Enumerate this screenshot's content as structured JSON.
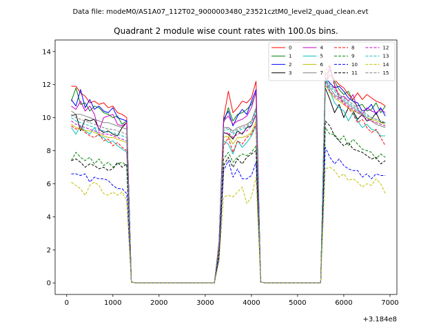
{
  "header": {
    "data_file": "Data file: modeM0/AS1A07_112T02_9000003480_23521cztM0_level2_quad_clean.evt"
  },
  "chart_data": {
    "type": "line",
    "title": "Quadrant 2 module wise count rates with 100.0s bins.",
    "xlabel": "",
    "ylabel": "",
    "x_offset_label": "+3.184e8",
    "xlim": [
      -250,
      7150
    ],
    "ylim": [
      -0.7,
      14.7
    ],
    "x_ticks": [
      0,
      1000,
      2000,
      3000,
      4000,
      5000,
      6000,
      7000
    ],
    "y_ticks": [
      0,
      2,
      4,
      6,
      8,
      10,
      12,
      14
    ],
    "grid": false,
    "legend_placement": "top-right",
    "x": [
      100,
      200,
      300,
      400,
      500,
      600,
      700,
      800,
      900,
      1000,
      1100,
      1200,
      1300,
      1400,
      1500,
      1600,
      1700,
      1800,
      1900,
      2000,
      2100,
      2200,
      2300,
      2400,
      2500,
      2600,
      2700,
      2800,
      2900,
      3000,
      3100,
      3200,
      3300,
      3400,
      3500,
      3600,
      3700,
      3800,
      3900,
      4000,
      4100,
      4200,
      4300,
      4400,
      4500,
      4600,
      4700,
      4800,
      4900,
      5000,
      5100,
      5200,
      5300,
      5400,
      5500,
      5600,
      5700,
      5800,
      5900,
      6000,
      6100,
      6200,
      6300,
      6400,
      6500,
      6600,
      6700,
      6800,
      6900
    ],
    "series": [
      {
        "name": "0",
        "color": "#ff0000",
        "dash": "solid",
        "values": [
          11.9,
          11.9,
          11.5,
          11.3,
          10.9,
          11.0,
          10.8,
          10.9,
          10.6,
          10.7,
          10.3,
          10.2,
          10.0,
          0.05,
          0,
          0,
          0,
          0,
          0,
          0,
          0,
          0,
          0,
          0,
          0,
          0,
          0,
          0,
          0,
          0,
          0,
          0,
          2.5,
          10.0,
          11.6,
          10.3,
          10.6,
          11.0,
          10.9,
          11.2,
          12.2,
          0.05,
          0,
          0,
          0,
          0,
          0,
          0,
          0,
          0,
          0,
          0,
          0,
          0,
          0,
          12.1,
          12.6,
          12.3,
          12.0,
          11.8,
          11.4,
          11.1,
          11.5,
          11.1,
          11.4,
          11.2,
          11.0,
          10.9,
          10.7
        ]
      },
      {
        "name": "1",
        "color": "#008000",
        "dash": "solid",
        "values": [
          11.0,
          11.8,
          10.8,
          10.9,
          10.4,
          10.7,
          10.6,
          10.3,
          10.2,
          10.0,
          10.1,
          9.6,
          9.8,
          0.05,
          0,
          0,
          0,
          0,
          0,
          0,
          0,
          0,
          0,
          0,
          0,
          0,
          0,
          0,
          0,
          0,
          0,
          0,
          2.3,
          9.7,
          10.6,
          9.8,
          10.2,
          10.3,
          10.5,
          10.8,
          11.5,
          0.05,
          0,
          0,
          0,
          0,
          0,
          0,
          0,
          0,
          0,
          0,
          0,
          0,
          0,
          12.6,
          12.9,
          12.2,
          11.7,
          11.4,
          11.6,
          11.0,
          10.7,
          10.8,
          10.4,
          10.5,
          10.9,
          10.3,
          10.7
        ]
      },
      {
        "name": "2",
        "color": "#0000ff",
        "dash": "solid",
        "values": [
          11.1,
          10.7,
          11.7,
          10.6,
          11.1,
          10.5,
          10.7,
          10.4,
          10.3,
          10.6,
          10.0,
          9.9,
          9.8,
          0.05,
          0,
          0,
          0,
          0,
          0,
          0,
          0,
          0,
          0,
          0,
          0,
          0,
          0,
          0,
          0,
          0,
          0,
          0,
          2.4,
          9.9,
          10.4,
          9.5,
          10.1,
          10.5,
          10.2,
          11.0,
          11.7,
          0.05,
          0,
          0,
          0,
          0,
          0,
          0,
          0,
          0,
          0,
          0,
          0,
          0,
          0,
          12.4,
          12.1,
          11.8,
          11.9,
          11.6,
          11.2,
          11.0,
          10.9,
          10.4,
          10.5,
          10.8,
          10.2,
          10.6,
          10.1
        ]
      },
      {
        "name": "3",
        "color": "#000000",
        "dash": "solid",
        "values": [
          10.1,
          10.2,
          9.2,
          9.9,
          9.8,
          9.9,
          9.3,
          9.1,
          9.2,
          9.0,
          8.9,
          9.4,
          9.7,
          0.05,
          0,
          0,
          0,
          0,
          0,
          0,
          0,
          0,
          0,
          0,
          0,
          0,
          0,
          0,
          0,
          0,
          0,
          0,
          2.2,
          9.1,
          9.0,
          8.7,
          9.2,
          9.0,
          9.4,
          9.5,
          10.2,
          0.05,
          0,
          0,
          0,
          0,
          0,
          0,
          0,
          0,
          0,
          0,
          0,
          0,
          0,
          11.8,
          11.1,
          10.3,
          10.8,
          10.0,
          10.6,
          10.4,
          9.9,
          10.2,
          9.8,
          9.9,
          10.3,
          9.7,
          9.7
        ]
      },
      {
        "name": "4",
        "color": "#bf00bf",
        "dash": "solid",
        "values": [
          10.7,
          10.5,
          11.0,
          10.4,
          10.7,
          10.2,
          9.2,
          10.0,
          10.1,
          10.2,
          9.6,
          9.5,
          9.7,
          0.05,
          0,
          0,
          0,
          0,
          0,
          0,
          0,
          0,
          0,
          0,
          0,
          0,
          0,
          0,
          0,
          0,
          0,
          0,
          2.4,
          9.8,
          10.1,
          9.6,
          9.8,
          9.9,
          10.1,
          10.6,
          11.6,
          0.05,
          0,
          0,
          0,
          0,
          0,
          0,
          0,
          0,
          0,
          0,
          0,
          0,
          0,
          12.0,
          13.1,
          12.0,
          11.2,
          11.3,
          11.0,
          11.4,
          10.5,
          10.2,
          10.6,
          10.4,
          10.3,
          10.5,
          10.3
        ]
      },
      {
        "name": "5",
        "color": "#00bfbf",
        "dash": "solid",
        "values": [
          9.4,
          9.0,
          9.5,
          9.2,
          9.0,
          9.4,
          8.9,
          8.8,
          8.5,
          8.6,
          8.3,
          8.1,
          7.9,
          0.05,
          0,
          0,
          0,
          0,
          0,
          0,
          0,
          0,
          0,
          0,
          0,
          0,
          0,
          0,
          0,
          0,
          0,
          0,
          2.0,
          8.6,
          8.4,
          7.8,
          8.6,
          8.2,
          8.5,
          8.9,
          9.5,
          0.05,
          0,
          0,
          0,
          0,
          0,
          0,
          0,
          0,
          0,
          0,
          0,
          0,
          0,
          12.4,
          11.6,
          10.9,
          10.6,
          10.4,
          9.8,
          10.3,
          9.8,
          9.4,
          9.6,
          9.3,
          9.2,
          8.9,
          8.9
        ]
      },
      {
        "name": "6",
        "color": "#bfbf00",
        "dash": "solid",
        "values": [
          9.6,
          9.4,
          9.3,
          9.2,
          9.2,
          9.1,
          9.0,
          8.9,
          8.8,
          8.8,
          8.7,
          8.6,
          8.5,
          0.05,
          0,
          0,
          0,
          0,
          0,
          0,
          0,
          0,
          0,
          0,
          0,
          0,
          0,
          0,
          0,
          0,
          0,
          0,
          2.1,
          8.8,
          8.9,
          8.4,
          8.8,
          8.8,
          8.9,
          9.1,
          9.8,
          0.05,
          0,
          0,
          0,
          0,
          0,
          0,
          0,
          0,
          0,
          0,
          0,
          0,
          0,
          12.0,
          11.5,
          11.2,
          11.0,
          10.8,
          10.6,
          10.4,
          10.3,
          10.2,
          10.0,
          9.9,
          9.8,
          9.7,
          9.6
        ]
      },
      {
        "name": "7",
        "color": "#808080",
        "dash": "solid",
        "values": [
          10.4,
          10.2,
          10.2,
          10.1,
          10.0,
          9.9,
          9.8,
          9.7,
          9.7,
          9.6,
          9.5,
          9.4,
          9.3,
          0.05,
          0,
          0,
          0,
          0,
          0,
          0,
          0,
          0,
          0,
          0,
          0,
          0,
          0,
          0,
          0,
          0,
          0,
          0,
          2.3,
          9.4,
          9.4,
          9.2,
          9.4,
          9.5,
          9.6,
          9.8,
          10.6,
          0.05,
          0,
          0,
          0,
          0,
          0,
          0,
          0,
          0,
          0,
          0,
          0,
          0,
          0,
          12.2,
          11.8,
          11.4,
          11.2,
          11.0,
          10.8,
          10.6,
          10.4,
          10.2,
          10.0,
          9.8,
          9.6,
          9.5,
          9.4
        ]
      },
      {
        "name": "8",
        "color": "#ff0000",
        "dash": "dashed",
        "values": [
          9.5,
          9.3,
          9.4,
          9.1,
          8.9,
          8.8,
          9.0,
          8.6,
          8.7,
          8.3,
          8.5,
          8.2,
          8.0,
          0.05,
          0,
          0,
          0,
          0,
          0,
          0,
          0,
          0,
          0,
          0,
          0,
          0,
          0,
          0,
          0,
          0,
          0,
          0,
          2.1,
          8.3,
          8.8,
          7.9,
          8.6,
          8.4,
          8.8,
          9.0,
          9.6,
          0.05,
          0,
          0,
          0,
          0,
          0,
          0,
          0,
          0,
          0,
          0,
          0,
          0,
          0,
          12.8,
          13.2,
          11.9,
          11.4,
          10.8,
          10.6,
          10.2,
          9.7,
          9.9,
          9.4,
          9.1,
          9.3,
          8.8,
          8.3
        ]
      },
      {
        "name": "9",
        "color": "#008000",
        "dash": "dashed",
        "values": [
          7.4,
          7.9,
          7.6,
          7.4,
          7.6,
          7.2,
          7.5,
          7.1,
          7.3,
          7.0,
          7.2,
          7.3,
          7.1,
          0.05,
          0,
          0,
          0,
          0,
          0,
          0,
          0,
          0,
          0,
          0,
          0,
          0,
          0,
          0,
          0,
          0,
          0,
          0,
          1.7,
          7.5,
          7.9,
          7.3,
          7.6,
          7.8,
          7.7,
          7.9,
          8.3,
          0.05,
          0,
          0,
          0,
          0,
          0,
          0,
          0,
          0,
          0,
          0,
          0,
          0,
          0,
          9.4,
          9.0,
          9.0,
          8.6,
          8.9,
          8.3,
          8.7,
          8.4,
          8.1,
          8.0,
          7.9,
          7.5,
          7.8,
          7.6
        ]
      },
      {
        "name": "10",
        "color": "#0000ff",
        "dash": "dashed",
        "values": [
          6.6,
          6.6,
          6.5,
          6.6,
          6.1,
          6.4,
          6.3,
          6.3,
          6.2,
          5.9,
          5.7,
          5.7,
          5.4,
          0.05,
          0,
          0,
          0,
          0,
          0,
          0,
          0,
          0,
          0,
          0,
          0,
          0,
          0,
          0,
          0,
          0,
          0,
          0,
          1.5,
          6.8,
          7.4,
          6.4,
          6.9,
          6.3,
          6.3,
          6.5,
          7.3,
          0.05,
          0,
          0,
          0,
          0,
          0,
          0,
          0,
          0,
          0,
          0,
          0,
          0,
          0,
          8.2,
          7.6,
          7.2,
          7.5,
          7.1,
          6.9,
          6.8,
          6.8,
          6.4,
          6.6,
          6.3,
          6.6,
          6.5,
          6.5
        ]
      },
      {
        "name": "11",
        "color": "#000000",
        "dash": "dashed",
        "values": [
          7.4,
          7.5,
          7.3,
          7.0,
          7.2,
          7.1,
          6.9,
          7.0,
          6.8,
          6.9,
          7.3,
          7.0,
          7.2,
          0.05,
          0,
          0,
          0,
          0,
          0,
          0,
          0,
          0,
          0,
          0,
          0,
          0,
          0,
          0,
          0,
          0,
          0,
          0,
          1.7,
          7.1,
          7.6,
          7.0,
          7.5,
          7.2,
          7.6,
          7.8,
          8.0,
          0.05,
          0,
          0,
          0,
          0,
          0,
          0,
          0,
          0,
          0,
          0,
          0,
          0,
          0,
          9.8,
          9.5,
          8.9,
          8.6,
          8.3,
          8.5,
          8.1,
          8.0,
          7.9,
          7.7,
          7.5,
          7.6,
          7.2,
          7.4
        ]
      },
      {
        "name": "12",
        "color": "#bf00bf",
        "dash": "dashed",
        "values": [
          9.8,
          9.6,
          9.5,
          9.4,
          9.3,
          9.2,
          9.1,
          9.0,
          9.0,
          8.9,
          8.8,
          8.7,
          8.6,
          0.05,
          0,
          0,
          0,
          0,
          0,
          0,
          0,
          0,
          0,
          0,
          0,
          0,
          0,
          0,
          0,
          0,
          0,
          0,
          2.2,
          9.0,
          9.1,
          8.8,
          9.0,
          9.1,
          9.2,
          9.5,
          10.2,
          0.05,
          0,
          0,
          0,
          0,
          0,
          0,
          0,
          0,
          0,
          0,
          0,
          0,
          0,
          12.1,
          11.6,
          11.3,
          11.1,
          10.9,
          10.7,
          10.5,
          10.3,
          10.1,
          9.9,
          9.8,
          9.7,
          9.6,
          9.5
        ]
      },
      {
        "name": "13",
        "color": "#00bfbf",
        "dash": "dashed",
        "values": [
          10.0,
          9.8,
          9.7,
          9.6,
          9.5,
          9.4,
          9.3,
          9.2,
          9.1,
          9.1,
          9.0,
          8.9,
          8.8,
          0.05,
          0,
          0,
          0,
          0,
          0,
          0,
          0,
          0,
          0,
          0,
          0,
          0,
          0,
          0,
          0,
          0,
          0,
          0,
          2.2,
          9.2,
          9.3,
          9.0,
          9.2,
          9.3,
          9.4,
          9.7,
          10.4,
          0.05,
          0,
          0,
          0,
          0,
          0,
          0,
          0,
          0,
          0,
          0,
          0,
          0,
          0,
          12.3,
          11.9,
          11.6,
          11.3,
          11.1,
          10.9,
          10.7,
          10.5,
          10.3,
          10.1,
          10.0,
          9.9,
          9.8,
          9.7
        ]
      },
      {
        "name": "14",
        "color": "#bfbf00",
        "dash": "dashed",
        "values": [
          6.1,
          5.9,
          5.7,
          5.3,
          5.9,
          6.1,
          5.9,
          5.4,
          5.3,
          5.5,
          5.3,
          5.5,
          5.0,
          0.05,
          0,
          0,
          0,
          0,
          0,
          0,
          0,
          0,
          0,
          0,
          0,
          0,
          0,
          0,
          0,
          0,
          0,
          0,
          1.3,
          5.2,
          5.3,
          5.2,
          5.5,
          5.8,
          4.8,
          5.2,
          6.4,
          0.05,
          0,
          0,
          0,
          0,
          0,
          0,
          0,
          0,
          0,
          0,
          0,
          0,
          0,
          6.9,
          7.0,
          6.8,
          6.4,
          6.6,
          6.2,
          6.3,
          6.1,
          5.8,
          6.0,
          5.9,
          6.3,
          6.0,
          5.4
        ]
      },
      {
        "name": "15",
        "color": "#808080",
        "dash": "dashed",
        "values": [
          10.2,
          10.0,
          9.9,
          9.8,
          9.7,
          9.6,
          9.5,
          9.4,
          9.3,
          9.3,
          9.2,
          9.1,
          9.0,
          0.05,
          0,
          0,
          0,
          0,
          0,
          0,
          0,
          0,
          0,
          0,
          0,
          0,
          0,
          0,
          0,
          0,
          0,
          0,
          2.3,
          9.3,
          9.4,
          9.1,
          9.3,
          9.4,
          9.5,
          9.8,
          10.5,
          0.05,
          0,
          0,
          0,
          0,
          0,
          0,
          0,
          0,
          0,
          0,
          0,
          0,
          0,
          12.4,
          12.0,
          11.7,
          11.4,
          11.2,
          11.0,
          10.8,
          10.6,
          10.4,
          10.2,
          10.0,
          9.9,
          9.8,
          9.7
        ]
      }
    ]
  }
}
